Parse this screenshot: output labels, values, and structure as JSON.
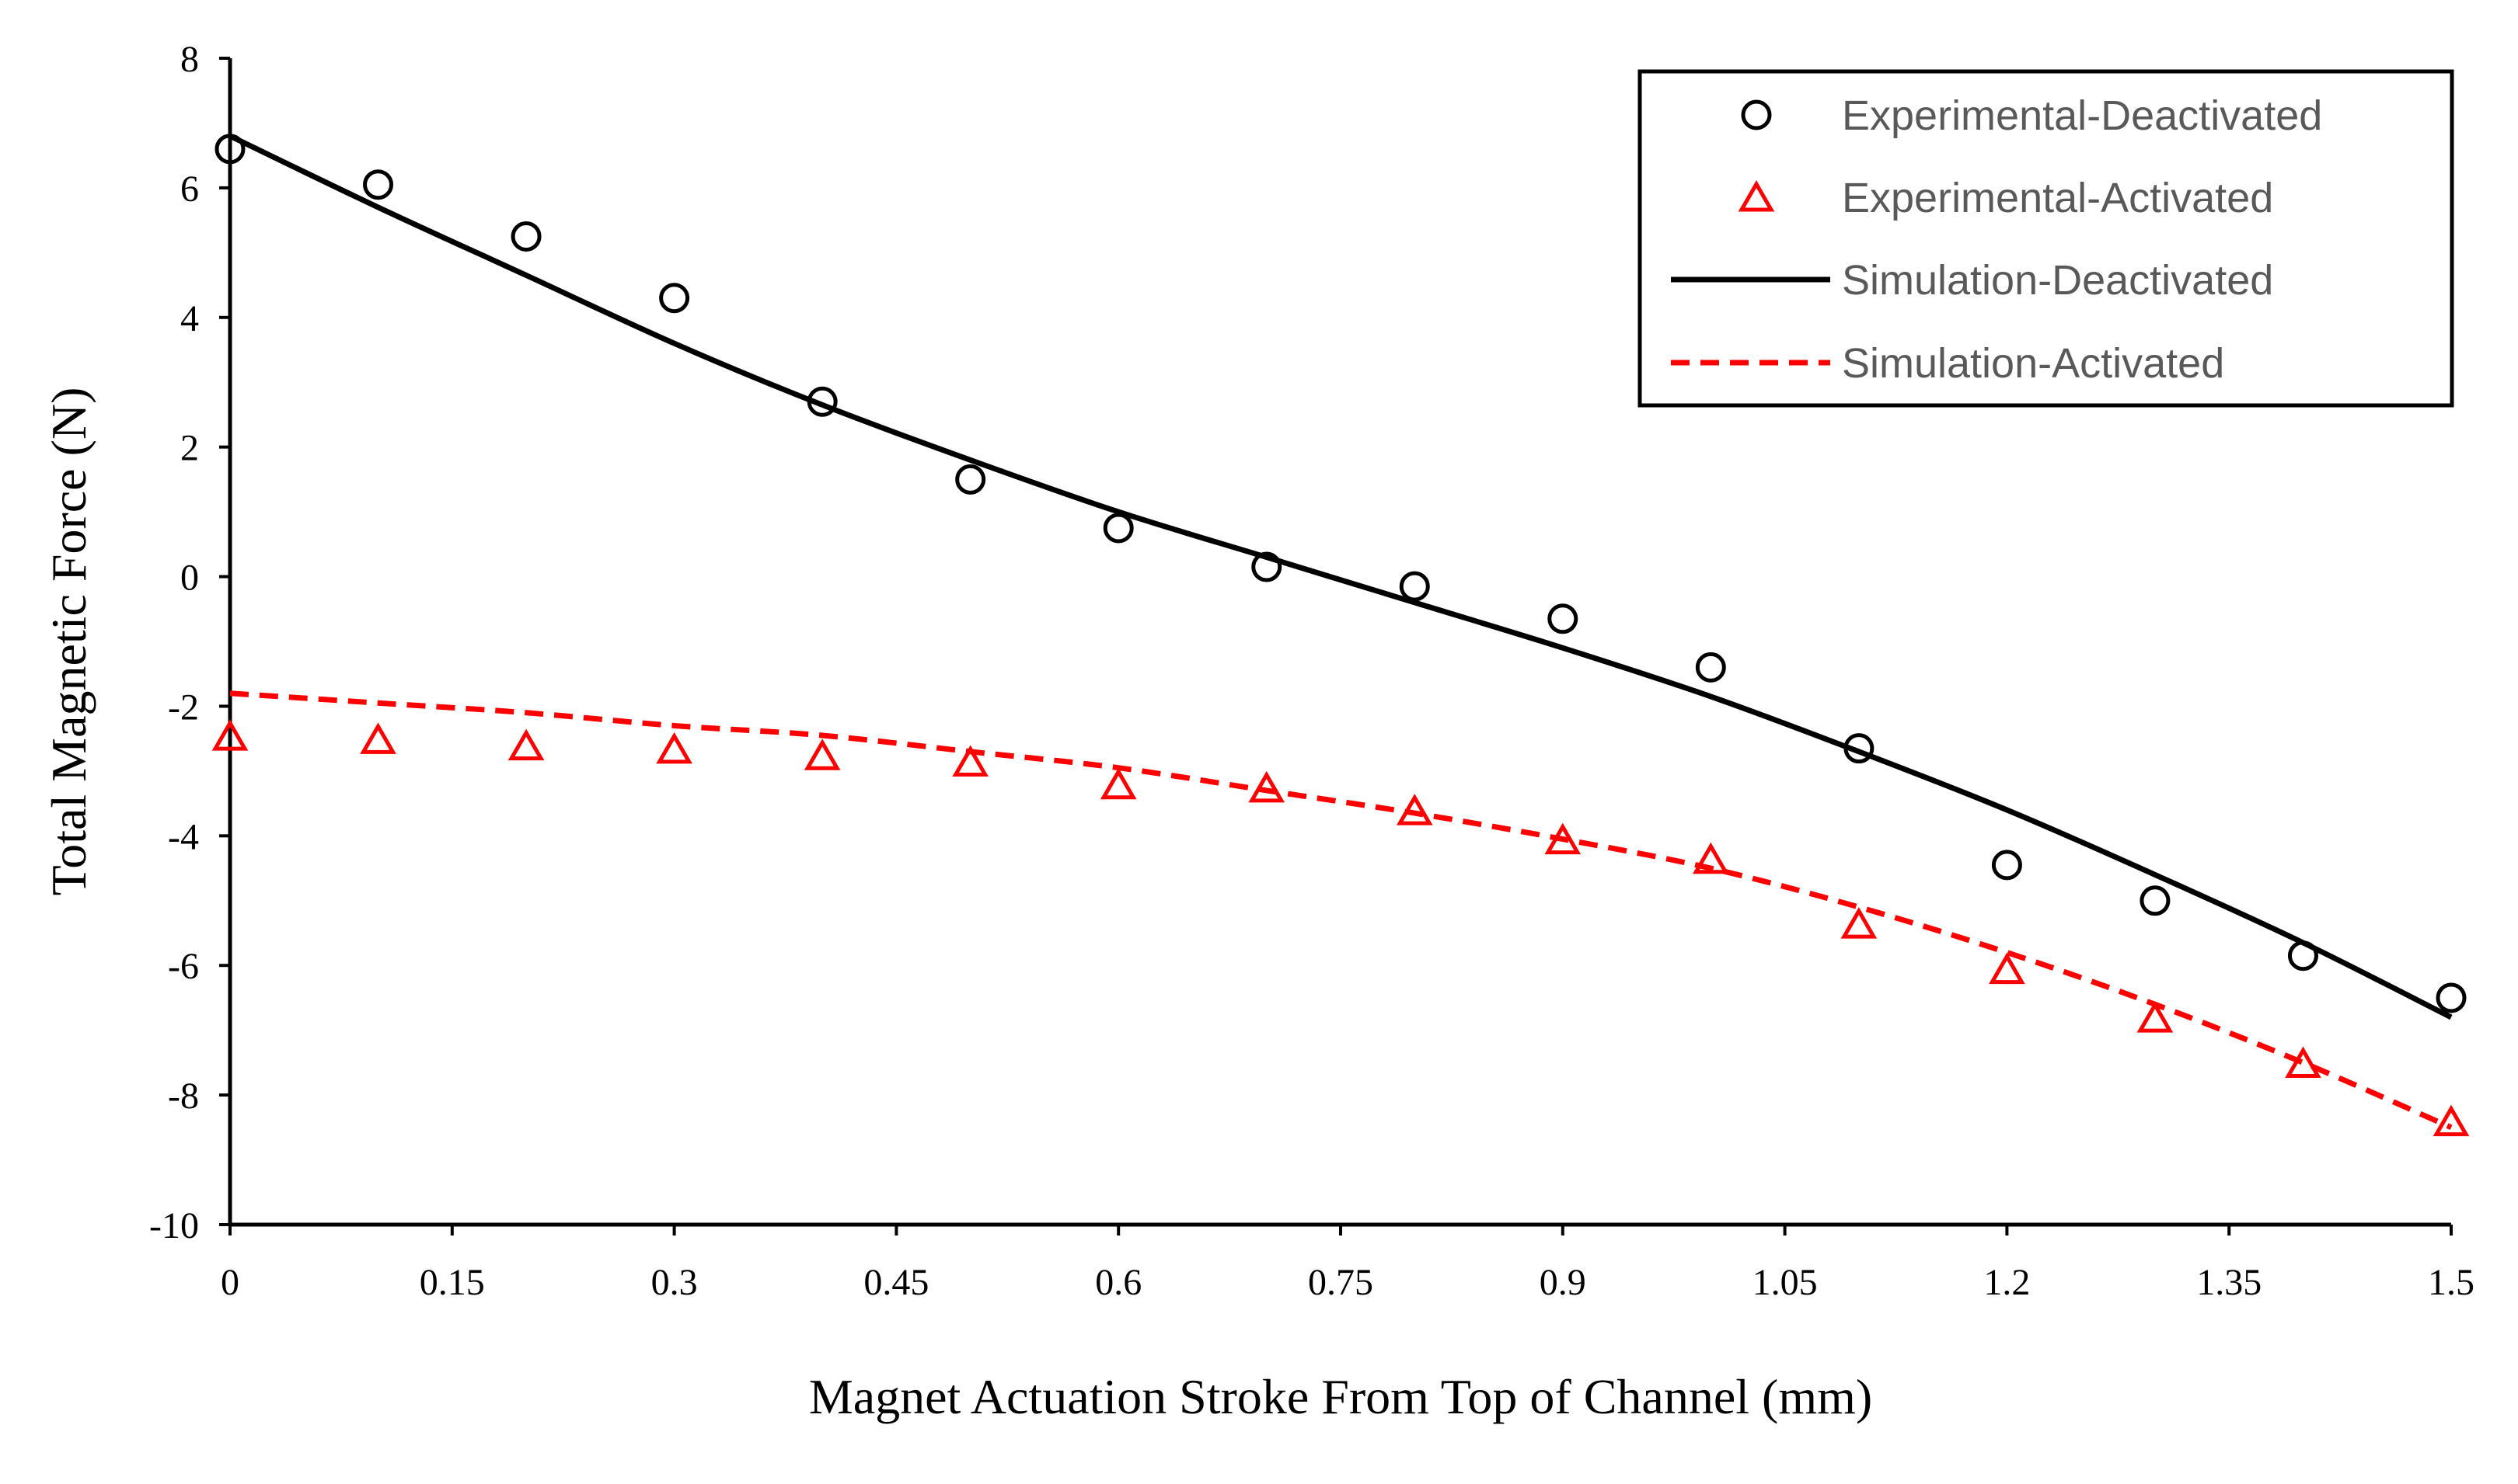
{
  "chart_data": {
    "type": "scatter",
    "title": "",
    "xlabel": "Magnet Actuation Stroke From Top of Channel (mm)",
    "ylabel": "Total Magnetic Force (N)",
    "xlim": [
      0,
      1.5
    ],
    "ylim": [
      -10,
      8
    ],
    "xticks": [
      0,
      0.15,
      0.3,
      0.45,
      0.6,
      0.75,
      0.9,
      1.05,
      1.2,
      1.35,
      1.5
    ],
    "xtick_labels": [
      "0",
      "0.15",
      "0.3",
      "0.45",
      "0.6",
      "0.75",
      "0.9",
      "1.05",
      "1.2",
      "1.35",
      "1.5"
    ],
    "yticks": [
      -10,
      -8,
      -6,
      -4,
      -2,
      0,
      2,
      4,
      6,
      8
    ],
    "ytick_labels": [
      "-10",
      "-8",
      "-6",
      "-4",
      "-2",
      "0",
      "2",
      "4",
      "6",
      "8"
    ],
    "grid": false,
    "legend_position": "top-right",
    "series": [
      {
        "name": "Experimental-Deactivated",
        "style": "markers",
        "marker": "circle",
        "color": "#000000",
        "x": [
          0,
          0.1,
          0.2,
          0.3,
          0.4,
          0.5,
          0.6,
          0.7,
          0.8,
          0.9,
          1.0,
          1.1,
          1.2,
          1.3,
          1.4,
          1.5
        ],
        "y": [
          6.6,
          6.05,
          5.25,
          4.3,
          2.7,
          1.5,
          0.75,
          0.15,
          -0.15,
          -0.65,
          -1.4,
          -2.65,
          -4.45,
          -5.0,
          -5.85,
          -6.5
        ]
      },
      {
        "name": "Experimental-Activated",
        "style": "markers",
        "marker": "triangle",
        "color": "#ff0000",
        "x": [
          0,
          0.1,
          0.2,
          0.3,
          0.4,
          0.5,
          0.6,
          0.7,
          0.8,
          0.9,
          1.0,
          1.1,
          1.2,
          1.3,
          1.4,
          1.5
        ],
        "y": [
          -2.5,
          -2.55,
          -2.65,
          -2.7,
          -2.8,
          -2.9,
          -3.25,
          -3.3,
          -3.65,
          -4.1,
          -4.4,
          -5.4,
          -6.1,
          -6.85,
          -7.55,
          -8.45
        ]
      },
      {
        "name": "Simulation-Deactivated",
        "style": "solid-line",
        "color": "#000000",
        "x": [
          0,
          0.1,
          0.2,
          0.3,
          0.4,
          0.5,
          0.6,
          0.7,
          0.8,
          0.9,
          1.0,
          1.1,
          1.2,
          1.3,
          1.4,
          1.5
        ],
        "y": [
          6.8,
          5.7,
          4.65,
          3.6,
          2.65,
          1.8,
          1.0,
          0.3,
          -0.4,
          -1.1,
          -1.85,
          -2.7,
          -3.6,
          -4.6,
          -5.65,
          -6.8
        ]
      },
      {
        "name": "Simulation-Activated",
        "style": "dashed-line",
        "color": "#ff0000",
        "x": [
          0,
          0.1,
          0.2,
          0.3,
          0.4,
          0.5,
          0.6,
          0.7,
          0.8,
          0.9,
          1.0,
          1.1,
          1.2,
          1.3,
          1.4,
          1.5
        ],
        "y": [
          -1.8,
          -1.95,
          -2.1,
          -2.3,
          -2.45,
          -2.7,
          -2.95,
          -3.3,
          -3.65,
          -4.05,
          -4.5,
          -5.1,
          -5.8,
          -6.6,
          -7.5,
          -8.5
        ]
      }
    ]
  }
}
